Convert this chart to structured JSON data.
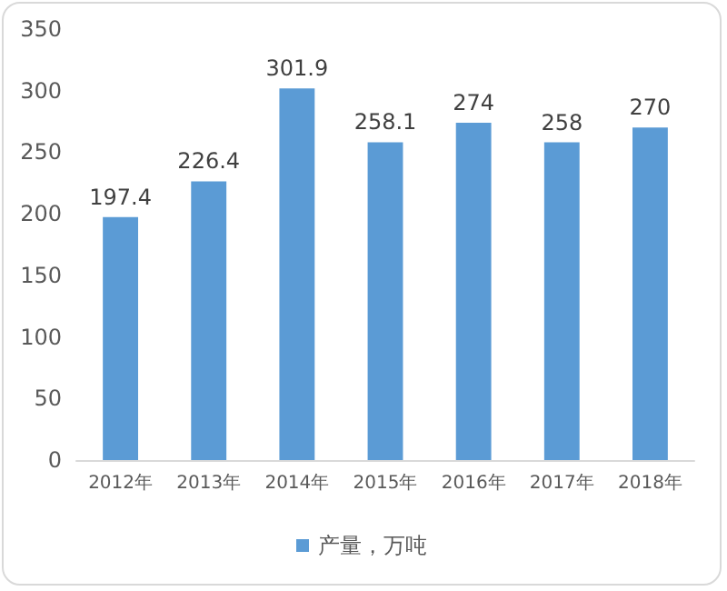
{
  "chart_data": {
    "type": "bar",
    "categories": [
      "2012年",
      "2013年",
      "2014年",
      "2015年",
      "2016年",
      "2017年",
      "2018年"
    ],
    "series": [
      {
        "name": "产量，万吨",
        "color": "#5b9bd5",
        "values": [
          197.4,
          226.4,
          301.9,
          258.1,
          274,
          258,
          270
        ]
      }
    ],
    "ylim": [
      0,
      350
    ],
    "yticks": [
      0,
      50,
      100,
      150,
      200,
      250,
      300,
      350
    ],
    "grid": false,
    "legend": "bottom",
    "data_labels": true
  }
}
